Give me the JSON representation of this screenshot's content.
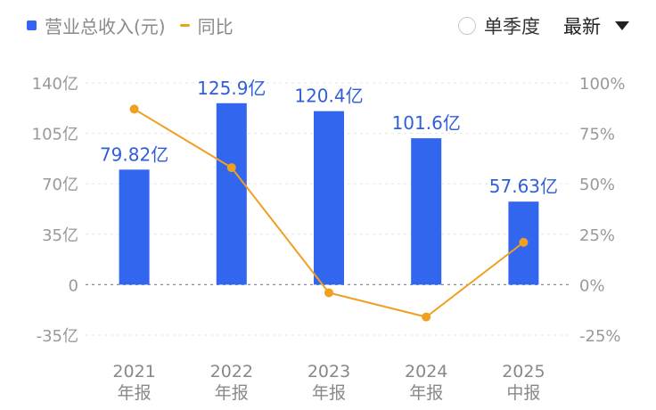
{
  "legend": {
    "bar_label": "营业总收入(元)",
    "line_label": "同比"
  },
  "controls": {
    "quarter_option": "单季度",
    "sort_selected": "最新"
  },
  "colors": {
    "bar": "#3366ee",
    "line": "#f0a020",
    "label": "#2f5fd8",
    "axis_text": "#999999",
    "grid": "#e6e6e6"
  },
  "chart_data": {
    "type": "bar",
    "categories": [
      [
        "2021",
        "年报"
      ],
      [
        "2022",
        "年报"
      ],
      [
        "2023",
        "年报"
      ],
      [
        "2024",
        "年报"
      ],
      [
        "2025",
        "中报"
      ]
    ],
    "series": [
      {
        "name": "营业总收入(元)",
        "type": "bar",
        "axis": "left",
        "values": [
          79.82,
          125.9,
          120.4,
          101.6,
          57.63
        ],
        "data_labels": [
          "79.82亿",
          "125.9亿",
          "120.4亿",
          "101.6亿",
          "57.63亿"
        ]
      },
      {
        "name": "同比",
        "type": "line",
        "axis": "right",
        "values": [
          87,
          58,
          -4,
          -16,
          21
        ]
      }
    ],
    "y_left": {
      "ticks": [
        140,
        105,
        70,
        35,
        0,
        -35
      ],
      "tick_labels": [
        "140亿",
        "105亿",
        "70亿",
        "35亿",
        "0",
        "-35亿"
      ],
      "range": [
        -35,
        140
      ]
    },
    "y_right": {
      "ticks": [
        100,
        75,
        50,
        25,
        0,
        -25
      ],
      "tick_labels": [
        "100%",
        "75%",
        "50%",
        "25%",
        "0%",
        "-25%"
      ],
      "range": [
        -25,
        100
      ]
    },
    "grid": true,
    "legend_position": "top-left"
  }
}
